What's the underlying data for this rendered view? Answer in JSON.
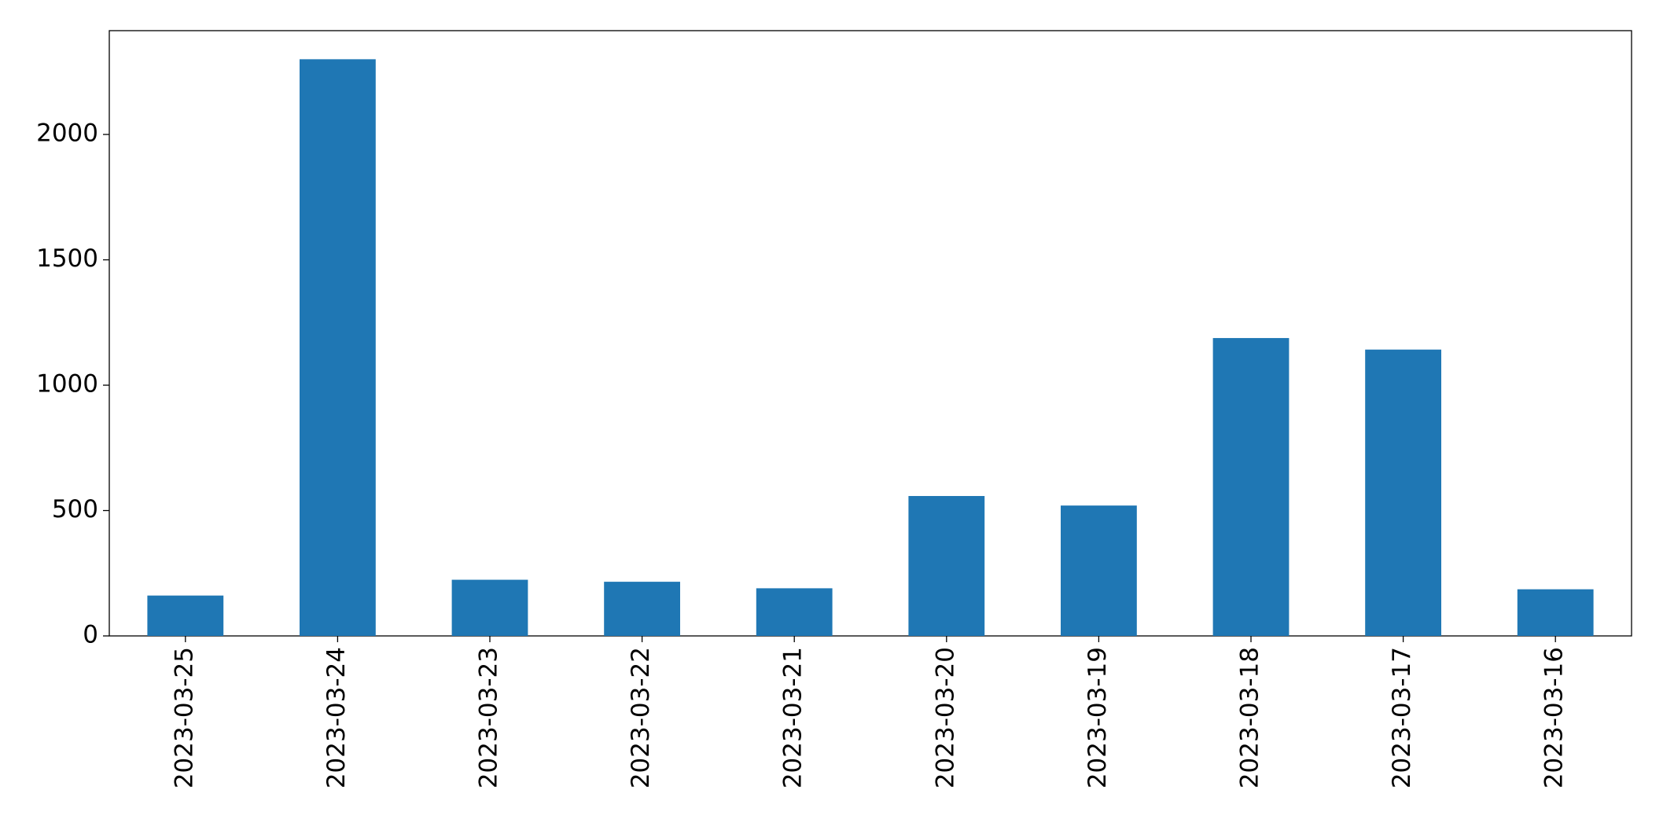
{
  "chart_data": {
    "type": "bar",
    "categories": [
      "2023-03-25",
      "2023-03-24",
      "2023-03-23",
      "2023-03-22",
      "2023-03-21",
      "2023-03-20",
      "2023-03-19",
      "2023-03-18",
      "2023-03-17",
      "2023-03-16"
    ],
    "values": [
      161,
      2300,
      224,
      216,
      190,
      558,
      520,
      1188,
      1142,
      186
    ],
    "color": "#1f77b4",
    "ylim": [
      0,
      2414
    ],
    "yticks": [
      0,
      500,
      1000,
      1500,
      2000
    ],
    "grid": false
  }
}
